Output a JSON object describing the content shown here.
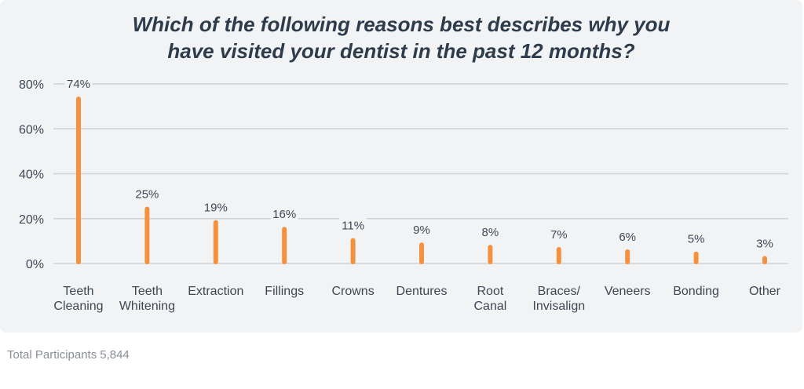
{
  "chart_data": {
    "type": "bar",
    "title": "Which of the following reasons best describes why you have visited your dentist in the past 12 months?",
    "title_lines": [
      "Which of the following reasons best describes why you",
      "have visited your dentist in the past 12 months?"
    ],
    "categories": [
      "Teeth Cleaning",
      "Teeth Whitening",
      "Extraction",
      "Fillings",
      "Crowns",
      "Dentures",
      "Root Canal",
      "Braces/ Invisalign",
      "Veneers",
      "Bonding",
      "Other"
    ],
    "category_label_lines": [
      [
        "Teeth",
        "Cleaning"
      ],
      [
        "Teeth",
        "Whitening"
      ],
      [
        "Extraction"
      ],
      [
        "Fillings"
      ],
      [
        "Crowns"
      ],
      [
        "Dentures"
      ],
      [
        "Root",
        "Canal"
      ],
      [
        "Braces/",
        "Invisalign"
      ],
      [
        "Veneers"
      ],
      [
        "Bonding"
      ],
      [
        "Other"
      ]
    ],
    "values": [
      74,
      25,
      19,
      16,
      11,
      9,
      8,
      7,
      6,
      5,
      3
    ],
    "data_labels": [
      "74%",
      "25%",
      "19%",
      "16%",
      "11%",
      "9%",
      "8%",
      "7%",
      "6%",
      "5%",
      "3%"
    ],
    "yticks": [
      0,
      20,
      40,
      60,
      80
    ],
    "ytick_labels": [
      "0%",
      "20%",
      "40%",
      "60%",
      "80%"
    ],
    "ylim": [
      0,
      80
    ],
    "xlabel": "",
    "ylabel": "",
    "grid": true,
    "bar_color": "#f5913e",
    "grid_color": "#cfd2d6"
  },
  "footer": {
    "label": "Total Participants",
    "value": "5,844"
  }
}
